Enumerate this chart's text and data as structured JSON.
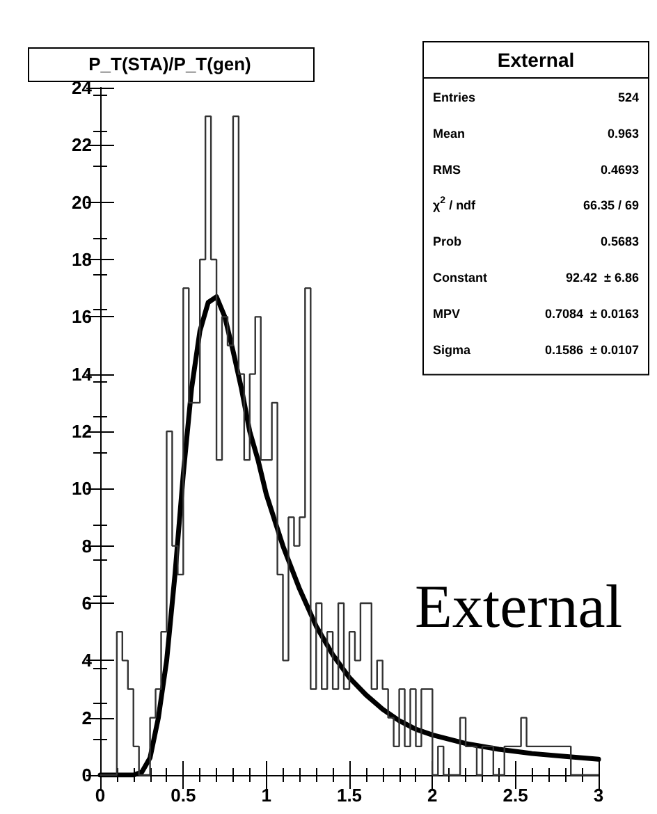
{
  "chart_data": {
    "type": "histogram",
    "title": "P_T(STA)/P_T(gen)",
    "color": "#333333",
    "bins": [
      0,
      0.0333,
      0.0667,
      0.1,
      0.1333,
      0.1667,
      0.2,
      0.2333,
      0.2667,
      0.3,
      0.3333,
      0.3667,
      0.4,
      0.4333,
      0.4667,
      0.5,
      0.5333,
      0.5667,
      0.6,
      0.6333,
      0.6667,
      0.7,
      0.7333,
      0.7667,
      0.8,
      0.8333,
      0.8667,
      0.9,
      0.9333,
      0.9667,
      1,
      1.0333,
      1.0667,
      1.1,
      1.1333,
      1.1667,
      1.2,
      1.2333,
      1.2667,
      1.3,
      1.3333,
      1.3667,
      1.4,
      1.4333,
      1.4667,
      1.5,
      1.5333,
      1.5667,
      1.6,
      1.6333,
      1.6667,
      1.7,
      1.7333,
      1.7667,
      1.8,
      1.8333,
      1.8667,
      1.9,
      1.9333,
      1.9667,
      2,
      2.0333,
      2.0667,
      2.1,
      2.1333,
      2.1667,
      2.2,
      2.2333,
      2.2667,
      2.3,
      2.3333,
      2.3667,
      2.4,
      2.4333,
      2.4667,
      2.5,
      2.5333,
      2.5667,
      2.6,
      2.6333,
      2.6667,
      2.7,
      2.7333,
      2.7667,
      2.8,
      2.8333,
      2.8667,
      2.9,
      2.9333,
      2.9667,
      3
    ],
    "values": [
      0,
      0,
      0,
      5,
      4,
      3,
      1,
      0,
      0,
      2,
      3,
      5,
      12,
      8,
      7,
      17,
      13,
      13,
      18,
      23,
      18,
      11,
      16,
      15,
      23,
      14,
      11,
      14,
      16,
      11,
      11,
      13,
      7,
      4,
      9,
      8,
      9,
      17,
      3,
      6,
      3,
      5,
      3,
      6,
      3,
      5,
      4,
      6,
      6,
      3,
      4,
      3,
      2,
      1,
      3,
      1,
      3,
      1,
      3,
      3,
      0,
      1,
      0,
      0,
      0,
      2,
      1,
      1,
      0,
      1,
      1,
      0,
      0,
      1,
      1,
      1,
      2,
      1,
      1,
      1,
      1,
      1,
      1,
      1,
      1,
      0,
      0,
      0,
      0,
      0
    ],
    "series": [
      {
        "type": "line",
        "color": "#000000",
        "x": [
          0,
          0.1,
          0.2,
          0.25,
          0.3,
          0.35,
          0.4,
          0.45,
          0.5,
          0.55,
          0.6,
          0.65,
          0.7,
          0.75,
          0.8,
          0.85,
          0.9,
          0.95,
          1,
          1.1,
          1.2,
          1.3,
          1.4,
          1.5,
          1.6,
          1.7,
          1.8,
          1.9,
          2,
          2.2,
          2.4,
          2.6,
          2.8,
          3
        ],
        "values": [
          0,
          0,
          0,
          0.1,
          0.6,
          2,
          4,
          7,
          10.5,
          13.5,
          15.5,
          16.5,
          16.7,
          16,
          14.8,
          13.5,
          12,
          11,
          9.8,
          8,
          6.5,
          5.2,
          4.2,
          3.4,
          2.8,
          2.3,
          1.9,
          1.6,
          1.4,
          1.1,
          0.9,
          0.75,
          0.65,
          0.55
        ]
      }
    ],
    "xlim": [
      0,
      3
    ],
    "xticks": [
      0,
      0.5,
      1,
      1.5,
      2,
      2.5,
      3
    ],
    "ylim": [
      0,
      24
    ],
    "yticks": [
      0,
      2,
      4,
      6,
      8,
      10,
      12,
      14,
      16,
      18,
      20,
      22,
      24
    ],
    "annotations": [
      "External",
      "Entries",
      "524",
      "Mean",
      "0.963",
      "RMS",
      "0.4693",
      "χ$^{2}$ / ndf",
      "66.35 / 69",
      "Prob",
      "0.5683",
      "Constant",
      "92.42  ± 6.86",
      "MPV",
      "0.7084  ± 0.0163",
      "Sigma",
      "0.1586  ± 0.0107",
      "External"
    ]
  }
}
